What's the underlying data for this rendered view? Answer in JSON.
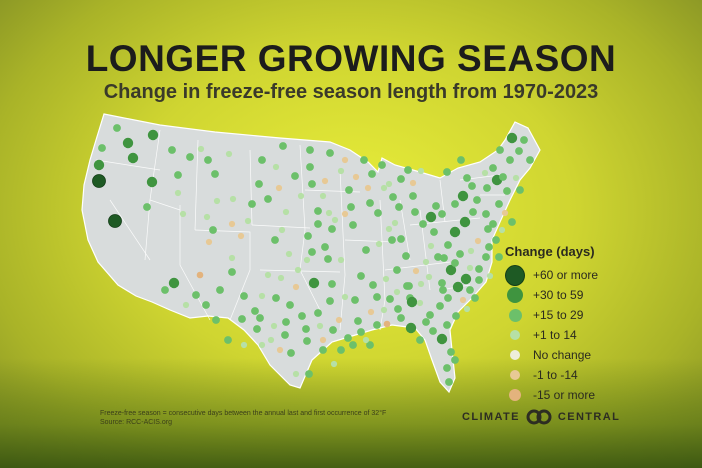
{
  "title": "LONGER GROWING SEASON",
  "subtitle": "Change in freeze-free season length from 1970-2023",
  "legend": {
    "title": "Change (days)",
    "items": [
      {
        "label": "+60 or more",
        "color": "#1e5a24"
      },
      {
        "label": "+30 to 59",
        "color": "#3f943f"
      },
      {
        "label": "+15 to 29",
        "color": "#6cc06a"
      },
      {
        "label": "+1 to 14",
        "color": "#b6e0a6"
      },
      {
        "label": "No change",
        "color": "#eeeeda"
      },
      {
        "label": "-1 to -14",
        "color": "#e7c995"
      },
      {
        "label": "-15 or more",
        "color": "#e3b37d"
      }
    ]
  },
  "footnote": {
    "line1": "Freeze-free season = consecutive days between the annual last and first occurrence of 32°F",
    "line2": "Source: RCC-ACIS.org"
  },
  "brand": {
    "left": "CLIMATE",
    "right": "CENTRAL"
  },
  "station_markers_cat": [
    0,
    0,
    1,
    1,
    1,
    2,
    2,
    1,
    1,
    2,
    2,
    2,
    2,
    3,
    3,
    3,
    2,
    2,
    3,
    3,
    3,
    5,
    5,
    6,
    3,
    2,
    2,
    3,
    2,
    2,
    2,
    3,
    3,
    2,
    2,
    5,
    2,
    3,
    3,
    2,
    2,
    2,
    5,
    5,
    3,
    2,
    3,
    2,
    2,
    3,
    3,
    5,
    2,
    3,
    3,
    2,
    3,
    2,
    2,
    1,
    2,
    3,
    2,
    2,
    5,
    2,
    5,
    2,
    2,
    2,
    3,
    3,
    2,
    2,
    5,
    3,
    2,
    2,
    3,
    2,
    2,
    2,
    2,
    3,
    2,
    2,
    3,
    2,
    2,
    2,
    3,
    3,
    2,
    1,
    2,
    3,
    2,
    2,
    2,
    2,
    5,
    3,
    2,
    2,
    2,
    1,
    2,
    2,
    1,
    2,
    2,
    1,
    2,
    2,
    2,
    2,
    1,
    2,
    2,
    2,
    2,
    2,
    2,
    1,
    1,
    2,
    2,
    3,
    5,
    2,
    2,
    2,
    2,
    1,
    1,
    2,
    2,
    2,
    2,
    2,
    2,
    3,
    2,
    2,
    3,
    2,
    2,
    3,
    5,
    2,
    3,
    2,
    2,
    2,
    2,
    5,
    2,
    2,
    3,
    2,
    3,
    1,
    2,
    2,
    1,
    1,
    2,
    2,
    2,
    2,
    2,
    2,
    1,
    2,
    3,
    2,
    2,
    2,
    2,
    2,
    2,
    3,
    5,
    3,
    2,
    5,
    3,
    2,
    3,
    3,
    2,
    3,
    2,
    2,
    3,
    5,
    2,
    2,
    2,
    5,
    2,
    2,
    3,
    2,
    2,
    2,
    2,
    2,
    3,
    2,
    3,
    2,
    5,
    2,
    3,
    2,
    2,
    2,
    3,
    2,
    5,
    2,
    3,
    2,
    6,
    2,
    2,
    2,
    3,
    2,
    2,
    2,
    3,
    2,
    3,
    2,
    2,
    2,
    3
  ]
}
